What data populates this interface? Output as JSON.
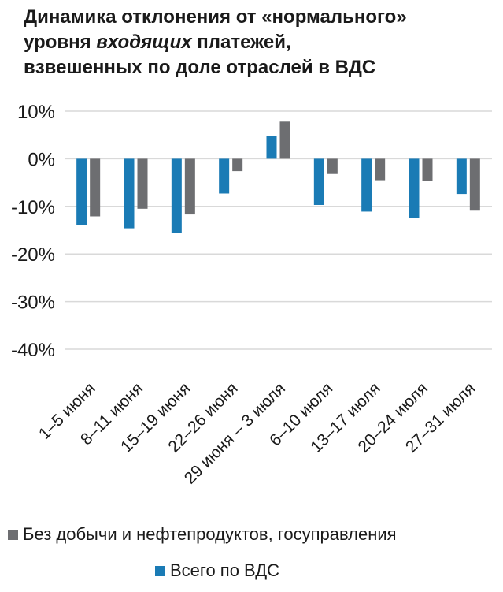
{
  "title": {
    "line1": "Динамика отклонения от «нормального»",
    "line2_pre": "уровня ",
    "line2_em": "входящих",
    "line2_post": " платежей,",
    "line3": "взвешенных по доле отраслей в ВДС"
  },
  "colors": {
    "series_gray": "#6d6e71",
    "series_blue": "#1a7bb5",
    "grid": "#d9d9d9"
  },
  "chart_data": {
    "type": "bar",
    "title": "Динамика отклонения от «нормального» уровня входящих платежей, взвешенных по доле отраслей в ВДС",
    "categories": [
      "1–5 июня",
      "8–11 июня",
      "15–19 июня",
      "22–26 июня",
      "29 июня – 3 июля",
      "6–10 июля",
      "13–17 июля",
      "20–24 июля",
      "27–31 июля"
    ],
    "series": [
      {
        "name": "Всего по ВДС",
        "color": "#1a7bb5",
        "values": [
          -14.0,
          -14.6,
          -15.5,
          -7.3,
          4.8,
          -9.7,
          -11.1,
          -12.4,
          -7.4
        ]
      },
      {
        "name": "Без добычи и нефтепродуктов, госуправления",
        "color": "#6d6e71",
        "values": [
          -12.1,
          -10.5,
          -11.7,
          -2.6,
          7.8,
          -3.2,
          -4.5,
          -4.6,
          -10.9
        ]
      }
    ],
    "ytick_labels": [
      "10%",
      "0%",
      "-10%",
      "-20%",
      "-30%",
      "-40%"
    ],
    "ytick_values": [
      10,
      0,
      -10,
      -20,
      -30,
      -40
    ],
    "ylim": [
      -40,
      10
    ],
    "grid": true,
    "legend_position": "bottom"
  },
  "legend": [
    {
      "label": "Без добычи и нефтепродуктов, госуправления",
      "color": "#6d6e71"
    },
    {
      "label": "Всего по ВДС",
      "color": "#1a7bb5"
    }
  ]
}
